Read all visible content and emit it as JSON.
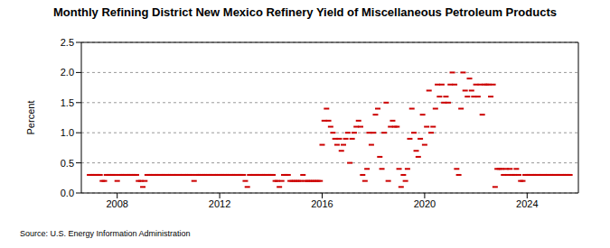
{
  "chart_data": {
    "type": "scatter",
    "title": "Monthly Refining District New Mexico Refinery Yield of Miscellaneous Petroleum Products",
    "ylabel": "Percent",
    "source": "Source: U.S. Energy Information Administration",
    "color": "#cc0000",
    "marker": "dash",
    "grid": true,
    "xlim": [
      2006.6,
      2026.0
    ],
    "xticks": [
      2008,
      2012,
      2016,
      2020,
      2024
    ],
    "ylim": [
      0,
      2.5
    ],
    "yticks": [
      {
        "value": 0,
        "label": "0.0"
      },
      0.5,
      {
        "value": 1,
        "label": "1.0"
      },
      1.5,
      {
        "value": 2,
        "label": "2.0"
      },
      2.5
    ],
    "x": [
      2006.92,
      2007.0,
      2007.08,
      2007.17,
      2007.25,
      2007.33,
      2007.42,
      2007.5,
      2007.58,
      2007.67,
      2007.75,
      2007.83,
      2007.92,
      2008.0,
      2008.08,
      2008.17,
      2008.25,
      2008.33,
      2008.42,
      2008.5,
      2008.58,
      2008.67,
      2008.75,
      2008.83,
      2008.92,
      2009.0,
      2009.08,
      2009.17,
      2009.25,
      2009.33,
      2009.42,
      2009.5,
      2009.58,
      2009.67,
      2009.75,
      2009.83,
      2009.92,
      2010.0,
      2010.08,
      2010.17,
      2010.25,
      2010.33,
      2010.42,
      2010.5,
      2010.58,
      2010.67,
      2010.75,
      2010.83,
      2010.92,
      2011.0,
      2011.08,
      2011.17,
      2011.25,
      2011.33,
      2011.42,
      2011.5,
      2011.58,
      2011.67,
      2011.75,
      2011.83,
      2011.92,
      2012.0,
      2012.08,
      2012.17,
      2012.25,
      2012.33,
      2012.42,
      2012.5,
      2012.58,
      2012.67,
      2012.75,
      2012.83,
      2012.92,
      2013.0,
      2013.08,
      2013.17,
      2013.25,
      2013.33,
      2013.42,
      2013.5,
      2013.58,
      2013.67,
      2013.75,
      2013.83,
      2013.92,
      2014.0,
      2014.08,
      2014.17,
      2014.25,
      2014.33,
      2014.42,
      2014.5,
      2014.58,
      2014.67,
      2014.75,
      2014.83,
      2014.92,
      2015.0,
      2015.08,
      2015.17,
      2015.25,
      2015.33,
      2015.42,
      2015.5,
      2015.58,
      2015.67,
      2015.75,
      2015.83,
      2015.92,
      2016.0,
      2016.08,
      2016.17,
      2016.25,
      2016.33,
      2016.42,
      2016.5,
      2016.58,
      2016.67,
      2016.75,
      2016.83,
      2016.92,
      2017.0,
      2017.08,
      2017.17,
      2017.25,
      2017.33,
      2017.42,
      2017.5,
      2017.58,
      2017.67,
      2017.75,
      2017.83,
      2017.92,
      2018.0,
      2018.08,
      2018.17,
      2018.25,
      2018.33,
      2018.42,
      2018.5,
      2018.58,
      2018.67,
      2018.75,
      2018.83,
      2018.92,
      2019.0,
      2019.08,
      2019.17,
      2019.25,
      2019.33,
      2019.42,
      2019.5,
      2019.58,
      2019.67,
      2019.75,
      2019.83,
      2019.92,
      2020.0,
      2020.08,
      2020.17,
      2020.25,
      2020.33,
      2020.42,
      2020.5,
      2020.58,
      2020.67,
      2020.75,
      2020.83,
      2020.92,
      2021.0,
      2021.08,
      2021.17,
      2021.25,
      2021.33,
      2021.42,
      2021.5,
      2021.58,
      2021.67,
      2021.75,
      2021.83,
      2021.92,
      2022.0,
      2022.08,
      2022.17,
      2022.25,
      2022.33,
      2022.42,
      2022.5,
      2022.58,
      2022.67,
      2022.75,
      2022.83,
      2022.92,
      2023.0,
      2023.08,
      2023.17,
      2023.25,
      2023.33,
      2023.42,
      2023.5,
      2023.58,
      2023.67,
      2023.75,
      2023.83,
      2023.92,
      2024.0,
      2024.08,
      2024.17,
      2024.25,
      2024.33,
      2024.42,
      2024.5,
      2024.58,
      2024.67,
      2024.75,
      2024.83,
      2024.92,
      2025.0,
      2025.08,
      2025.17,
      2025.25,
      2025.33,
      2025.42,
      2025.5,
      2025.58,
      2025.67
    ],
    "values": [
      0.3,
      0.3,
      0.3,
      0.3,
      0.3,
      0.3,
      0.2,
      0.2,
      0.3,
      0.3,
      0.3,
      0.3,
      0.3,
      0.2,
      0.3,
      0.3,
      0.3,
      0.3,
      0.3,
      0.3,
      0.3,
      0.3,
      0.3,
      0.2,
      0.2,
      0.1,
      0.2,
      0.3,
      0.3,
      0.3,
      0.3,
      0.3,
      0.3,
      0.3,
      0.3,
      0.3,
      0.3,
      0.3,
      0.3,
      0.3,
      0.3,
      0.3,
      0.3,
      0.3,
      0.3,
      0.3,
      0.3,
      0.3,
      0.3,
      0.2,
      0.3,
      0.3,
      0.3,
      0.3,
      0.3,
      0.3,
      0.3,
      0.3,
      0.3,
      0.3,
      0.3,
      0.3,
      0.3,
      0.3,
      0.3,
      0.3,
      0.3,
      0.3,
      0.3,
      0.3,
      0.3,
      0.3,
      0.3,
      0.2,
      0.1,
      0.3,
      0.3,
      0.3,
      0.3,
      0.3,
      0.3,
      0.3,
      0.3,
      0.3,
      0.3,
      0.3,
      0.3,
      0.2,
      0.2,
      0.1,
      0.2,
      0.3,
      0.3,
      0.3,
      0.2,
      0.2,
      0.2,
      0.2,
      0.2,
      0.2,
      0.3,
      0.2,
      0.2,
      0.2,
      0.2,
      0.2,
      0.2,
      0.2,
      0.2,
      0.8,
      1.2,
      1.4,
      1.2,
      1.1,
      1.0,
      0.9,
      0.8,
      0.9,
      0.7,
      0.8,
      0.9,
      1.0,
      0.5,
      0.9,
      1.0,
      1.1,
      1.2,
      1.1,
      0.3,
      0.2,
      0.4,
      1.0,
      0.8,
      1.0,
      1.3,
      1.4,
      0.6,
      0.4,
      1.0,
      1.5,
      0.2,
      1.1,
      1.2,
      1.1,
      1.1,
      0.4,
      0.1,
      0.3,
      0.2,
      0.4,
      0.9,
      1.4,
      1.0,
      0.7,
      0.6,
      0.9,
      1.3,
      0.8,
      1.1,
      1.7,
      1.0,
      1.1,
      1.4,
      1.8,
      1.6,
      1.8,
      1.5,
      1.6,
      1.5,
      1.8,
      2.0,
      1.8,
      0.4,
      0.3,
      1.4,
      2.0,
      1.7,
      1.6,
      1.9,
      1.7,
      1.6,
      1.8,
      1.6,
      1.8,
      1.3,
      1.8,
      1.8,
      1.8,
      1.6,
      1.8,
      0.1,
      0.4,
      0.4,
      0.4,
      0.3,
      0.4,
      0.3,
      0.4,
      0.3,
      0.3,
      0.4,
      0.3,
      0.2,
      0.2,
      0.3,
      0.3,
      0.3,
      0.3,
      0.3,
      0.3,
      0.3,
      0.3,
      0.3,
      0.3,
      0.3,
      0.3,
      0.3,
      0.3,
      0.3,
      0.3,
      0.3,
      0.3,
      0.3,
      0.3,
      0.3,
      0.3
    ]
  }
}
